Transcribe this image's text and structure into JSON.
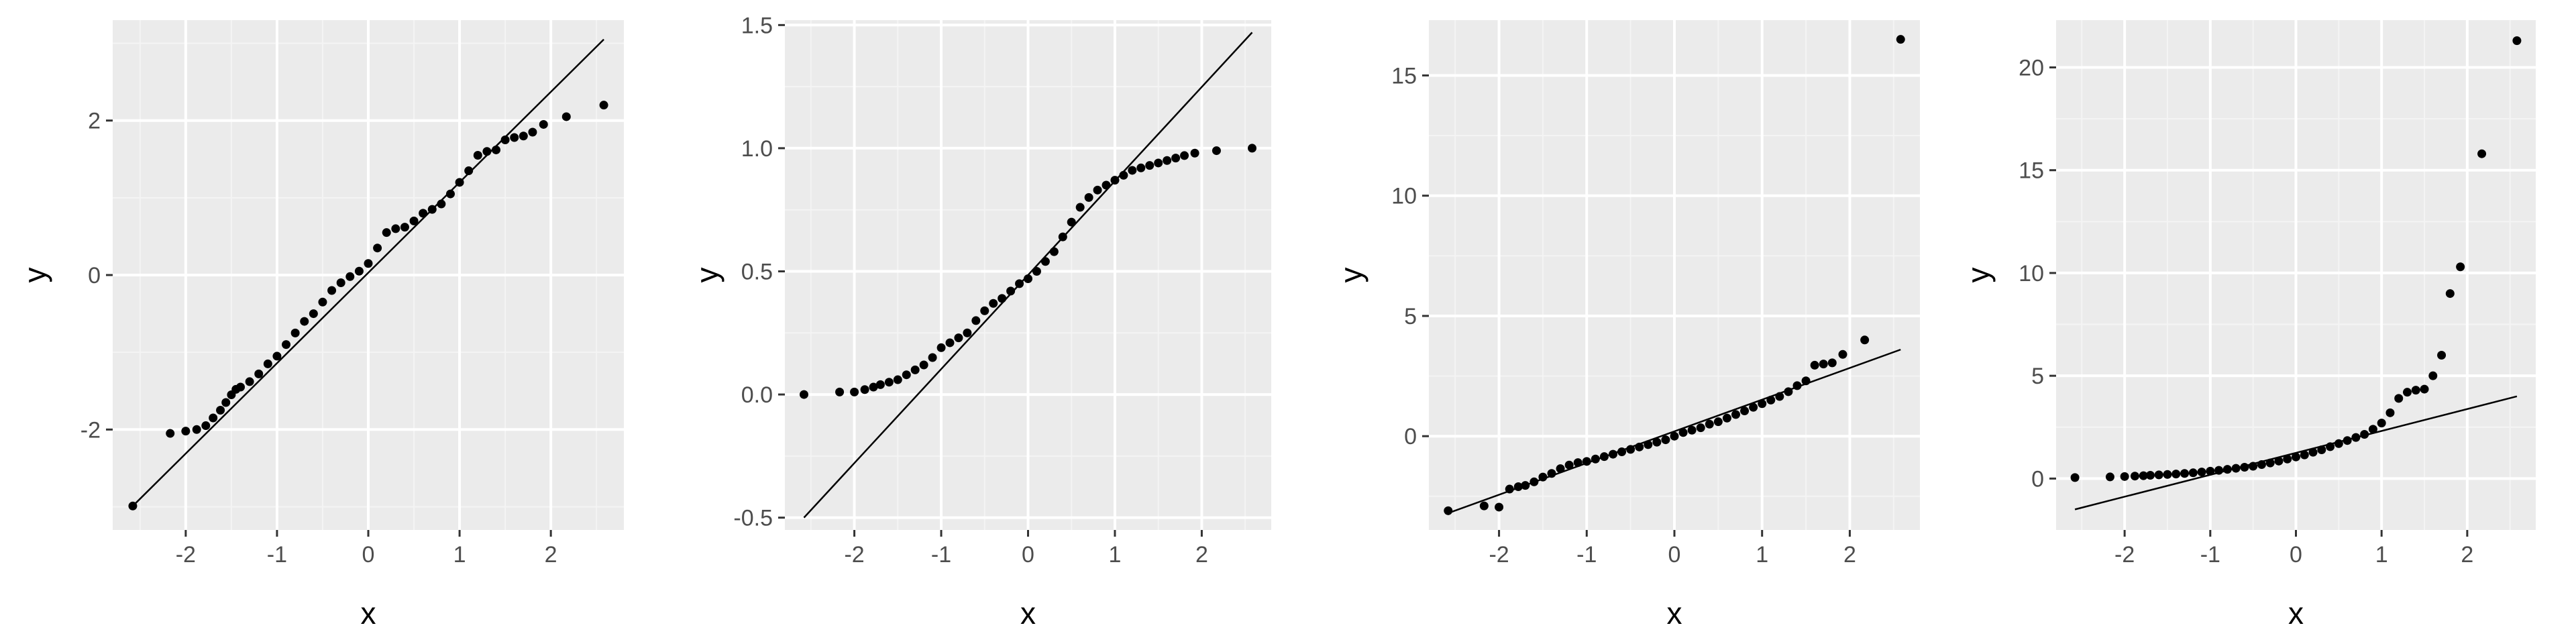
{
  "style": {
    "panel_bg": "#ebebeb",
    "grid_major": "#ffffff",
    "grid_minor": "#f4f4f4",
    "point_color": "#000000",
    "line_color": "#000000",
    "tick_label_color": "#4d4d4d"
  },
  "chart_data": [
    {
      "type": "scatter",
      "title": "",
      "xlabel": "x",
      "ylabel": "y",
      "xlim": [
        -2.8,
        2.8
      ],
      "ylim": [
        -3.3,
        3.3
      ],
      "x_ticks": [
        -2,
        -1,
        0,
        1,
        2
      ],
      "x_tick_labels": [
        "-2",
        "-1",
        "0",
        "1",
        "2"
      ],
      "y_ticks": [
        -2,
        0,
        2
      ],
      "y_tick_labels": [
        "-2",
        "0",
        "2"
      ],
      "grid": true,
      "reference_line": {
        "x": [
          -2.58,
          2.58
        ],
        "y": [
          -2.99,
          3.05
        ]
      },
      "series": [
        {
          "x": [
            -2.58,
            -2.17,
            -2.0,
            -1.88,
            -1.78,
            -1.7,
            -1.62,
            -1.56,
            -1.5,
            -1.45,
            -1.4,
            -1.3,
            -1.2,
            -1.1,
            -1.0,
            -0.9,
            -0.8,
            -0.7,
            -0.6,
            -0.5,
            -0.4,
            -0.3,
            -0.2,
            -0.1,
            0.0,
            0.1,
            0.2,
            0.3,
            0.4,
            0.5,
            0.6,
            0.7,
            0.8,
            0.9,
            1.0,
            1.1,
            1.2,
            1.3,
            1.4,
            1.5,
            1.6,
            1.7,
            1.8,
            1.92,
            2.17,
            2.58
          ],
          "y": [
            -2.99,
            -2.05,
            -2.02,
            -2.0,
            -1.95,
            -1.85,
            -1.75,
            -1.65,
            -1.55,
            -1.48,
            -1.45,
            -1.38,
            -1.28,
            -1.15,
            -1.05,
            -0.9,
            -0.75,
            -0.6,
            -0.5,
            -0.35,
            -0.2,
            -0.1,
            -0.02,
            0.05,
            0.15,
            0.35,
            0.55,
            0.6,
            0.62,
            0.7,
            0.8,
            0.85,
            0.92,
            1.05,
            1.2,
            1.35,
            1.55,
            1.6,
            1.62,
            1.75,
            1.78,
            1.8,
            1.85,
            1.95,
            2.05,
            2.2
          ]
        }
      ]
    },
    {
      "type": "scatter",
      "title": "",
      "xlabel": "x",
      "ylabel": "y",
      "xlim": [
        -2.8,
        2.8
      ],
      "ylim": [
        -0.55,
        1.52
      ],
      "x_ticks": [
        -2,
        -1,
        0,
        1,
        2
      ],
      "x_tick_labels": [
        "-2",
        "-1",
        "0",
        "1",
        "2"
      ],
      "y_ticks": [
        -0.5,
        0.0,
        0.5,
        1.0,
        1.5
      ],
      "y_tick_labels": [
        "-0.5",
        "0.0",
        "0.5",
        "1.0",
        "1.5"
      ],
      "grid": true,
      "reference_line": {
        "x": [
          -2.58,
          2.58
        ],
        "y": [
          -0.5,
          1.47
        ]
      },
      "series": [
        {
          "x": [
            -2.58,
            -2.17,
            -2.0,
            -1.88,
            -1.78,
            -1.7,
            -1.6,
            -1.5,
            -1.4,
            -1.3,
            -1.2,
            -1.1,
            -1.0,
            -0.9,
            -0.8,
            -0.7,
            -0.6,
            -0.5,
            -0.4,
            -0.3,
            -0.2,
            -0.1,
            0.0,
            0.1,
            0.2,
            0.3,
            0.4,
            0.5,
            0.6,
            0.7,
            0.8,
            0.9,
            1.0,
            1.1,
            1.2,
            1.3,
            1.4,
            1.5,
            1.6,
            1.7,
            1.8,
            1.92,
            2.17,
            2.58
          ],
          "y": [
            0.0,
            0.01,
            0.01,
            0.02,
            0.03,
            0.04,
            0.05,
            0.06,
            0.08,
            0.1,
            0.12,
            0.15,
            0.19,
            0.21,
            0.23,
            0.25,
            0.3,
            0.34,
            0.37,
            0.39,
            0.42,
            0.45,
            0.47,
            0.5,
            0.54,
            0.58,
            0.64,
            0.7,
            0.76,
            0.8,
            0.83,
            0.85,
            0.87,
            0.89,
            0.91,
            0.92,
            0.93,
            0.94,
            0.95,
            0.96,
            0.97,
            0.98,
            0.99,
            1.0
          ]
        }
      ]
    },
    {
      "type": "scatter",
      "title": "",
      "xlabel": "x",
      "ylabel": "y",
      "xlim": [
        -2.8,
        2.8
      ],
      "ylim": [
        -3.9,
        17.3
      ],
      "x_ticks": [
        -2,
        -1,
        0,
        1,
        2
      ],
      "x_tick_labels": [
        "-2",
        "-1",
        "0",
        "1",
        "2"
      ],
      "y_ticks": [
        0,
        5,
        10,
        15
      ],
      "y_tick_labels": [
        "0",
        "5",
        "10",
        "15"
      ],
      "grid": true,
      "reference_line": {
        "x": [
          -2.58,
          2.58
        ],
        "y": [
          -3.2,
          3.6
        ]
      },
      "series": [
        {
          "x": [
            -2.58,
            -2.17,
            -2.0,
            -1.88,
            -1.78,
            -1.7,
            -1.6,
            -1.5,
            -1.4,
            -1.3,
            -1.2,
            -1.1,
            -1.0,
            -0.9,
            -0.8,
            -0.7,
            -0.6,
            -0.5,
            -0.4,
            -0.3,
            -0.2,
            -0.1,
            0.0,
            0.1,
            0.2,
            0.3,
            0.4,
            0.5,
            0.6,
            0.7,
            0.8,
            0.9,
            1.0,
            1.1,
            1.2,
            1.3,
            1.4,
            1.5,
            1.6,
            1.7,
            1.8,
            1.92,
            2.17,
            2.58
          ],
          "y": [
            -3.1,
            -2.9,
            -2.95,
            -2.2,
            -2.1,
            -2.05,
            -1.9,
            -1.7,
            -1.55,
            -1.35,
            -1.2,
            -1.1,
            -1.05,
            -0.95,
            -0.85,
            -0.75,
            -0.65,
            -0.55,
            -0.45,
            -0.35,
            -0.25,
            -0.15,
            0.0,
            0.15,
            0.25,
            0.35,
            0.5,
            0.6,
            0.75,
            0.9,
            1.05,
            1.2,
            1.35,
            1.5,
            1.65,
            1.85,
            2.1,
            2.3,
            2.95,
            3.0,
            3.05,
            3.4,
            4.0,
            16.5
          ]
        }
      ]
    },
    {
      "type": "scatter",
      "title": "",
      "xlabel": "x",
      "ylabel": "y",
      "xlim": [
        -2.8,
        2.8
      ],
      "ylim": [
        -2.5,
        22.3
      ],
      "x_ticks": [
        -2,
        -1,
        0,
        1,
        2
      ],
      "x_tick_labels": [
        "-2",
        "-1",
        "0",
        "1",
        "2"
      ],
      "y_ticks": [
        0,
        5,
        10,
        15,
        20
      ],
      "y_tick_labels": [
        "0",
        "5",
        "10",
        "15",
        "20"
      ],
      "grid": true,
      "reference_line": {
        "x": [
          -2.58,
          2.58
        ],
        "y": [
          -1.5,
          4.0
        ]
      },
      "series": [
        {
          "x": [
            -2.58,
            -2.17,
            -2.0,
            -1.88,
            -1.78,
            -1.7,
            -1.6,
            -1.5,
            -1.4,
            -1.3,
            -1.2,
            -1.1,
            -1.0,
            -0.9,
            -0.8,
            -0.7,
            -0.6,
            -0.5,
            -0.4,
            -0.3,
            -0.2,
            -0.1,
            0.0,
            0.1,
            0.2,
            0.3,
            0.4,
            0.5,
            0.6,
            0.7,
            0.8,
            0.9,
            1.0,
            1.1,
            1.2,
            1.3,
            1.4,
            1.5,
            1.6,
            1.7,
            1.8,
            1.92,
            2.17,
            2.58
          ],
          "y": [
            0.05,
            0.08,
            0.1,
            0.12,
            0.14,
            0.16,
            0.18,
            0.2,
            0.22,
            0.25,
            0.28,
            0.32,
            0.36,
            0.4,
            0.45,
            0.5,
            0.55,
            0.6,
            0.68,
            0.76,
            0.85,
            0.95,
            1.05,
            1.15,
            1.28,
            1.4,
            1.55,
            1.7,
            1.85,
            2.0,
            2.15,
            2.4,
            2.7,
            3.2,
            3.9,
            4.2,
            4.3,
            4.35,
            5.0,
            6.0,
            9.0,
            10.3,
            15.8,
            21.3
          ]
        }
      ]
    }
  ]
}
